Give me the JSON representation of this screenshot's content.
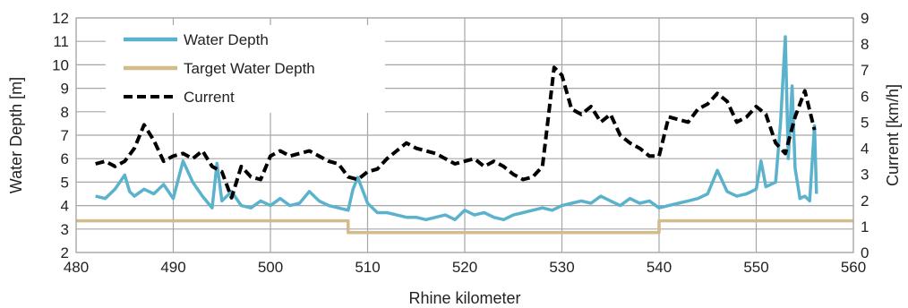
{
  "chart_data": {
    "type": "line",
    "xlabel": "Rhine kilometer",
    "ylabel": "Water Depth [m]",
    "y2label": "Current [km/h]",
    "xlim": [
      480,
      560
    ],
    "x_ticks": [
      480,
      490,
      500,
      510,
      520,
      530,
      540,
      550,
      560
    ],
    "ylim": [
      2,
      12
    ],
    "y_ticks": [
      2,
      3,
      4,
      5,
      6,
      7,
      8,
      9,
      10,
      11,
      12
    ],
    "y2lim": [
      0,
      9
    ],
    "y2_ticks": [
      0,
      1,
      2,
      3,
      4,
      5,
      6,
      7,
      8,
      9
    ],
    "grid": true,
    "legend_position": "top-left",
    "series": [
      {
        "name": "Water Depth",
        "axis": "left",
        "color": "#5ab2cc",
        "style": "solid",
        "x": [
          482,
          483,
          484,
          485,
          485.5,
          486,
          487,
          488,
          489,
          490,
          491,
          492,
          493,
          494,
          494.5,
          495,
          496,
          497,
          498,
          499,
          500,
          501,
          502,
          503,
          504,
          505,
          506,
          507,
          508,
          508.5,
          509,
          510,
          511,
          512,
          513,
          514,
          515,
          516,
          517,
          518,
          519,
          520,
          521,
          522,
          523,
          524,
          525,
          526,
          527,
          528,
          529,
          530,
          531,
          532,
          533,
          534,
          535,
          536,
          537,
          538,
          539,
          540,
          541,
          542,
          543,
          544,
          545,
          546,
          547,
          548,
          549,
          550,
          550.5,
          551,
          552,
          552.5,
          553,
          553.3,
          553.7,
          554,
          554.5,
          555,
          555.5,
          556,
          556.2
        ],
        "y": [
          4.4,
          4.3,
          4.7,
          5.3,
          4.6,
          4.4,
          4.7,
          4.5,
          4.9,
          4.3,
          5.9,
          5.0,
          4.4,
          3.9,
          5.8,
          4.2,
          4.6,
          4.0,
          3.9,
          4.2,
          4.0,
          4.3,
          4.0,
          4.1,
          4.6,
          4.2,
          4.0,
          3.9,
          3.8,
          4.7,
          5.2,
          4.1,
          3.7,
          3.7,
          3.6,
          3.5,
          3.5,
          3.4,
          3.5,
          3.6,
          3.4,
          3.8,
          3.6,
          3.7,
          3.5,
          3.4,
          3.6,
          3.7,
          3.8,
          3.9,
          3.8,
          4.0,
          4.1,
          4.2,
          4.1,
          4.4,
          4.2,
          4.0,
          4.3,
          4.1,
          4.2,
          3.9,
          4.0,
          4.1,
          4.2,
          4.3,
          4.5,
          5.5,
          4.6,
          4.4,
          4.5,
          4.7,
          5.9,
          4.8,
          5.0,
          7.5,
          11.2,
          6.0,
          9.1,
          5.6,
          4.3,
          4.4,
          4.2,
          7.4,
          4.5
        ]
      },
      {
        "name": "Target Water Depth",
        "axis": "left",
        "color": "#d3bc8c",
        "style": "solid",
        "x": [
          480,
          508,
          508,
          540,
          540,
          560
        ],
        "y": [
          3.35,
          3.35,
          2.85,
          2.85,
          3.35,
          3.35
        ]
      },
      {
        "name": "Current",
        "axis": "right",
        "color": "#000000",
        "style": "dashed",
        "x": [
          482,
          483,
          484,
          485,
          486,
          487,
          488,
          489,
          490,
          491,
          492,
          493,
          494,
          495,
          496,
          497,
          498,
          499,
          500,
          501,
          502,
          503,
          504,
          505,
          506,
          507,
          508,
          509,
          510,
          511,
          512,
          513,
          514,
          515,
          516,
          517,
          518,
          519,
          520,
          521,
          522,
          523,
          524,
          525,
          526,
          527,
          528,
          528.7,
          529.2,
          530,
          531,
          532,
          533,
          534,
          535,
          536,
          537,
          538,
          539,
          540,
          541,
          542,
          543,
          544,
          545,
          546,
          547,
          548,
          549,
          550,
          551,
          552,
          553,
          554,
          555,
          556
        ],
        "y": [
          3.4,
          3.5,
          3.3,
          3.5,
          4.0,
          4.9,
          4.3,
          3.5,
          3.7,
          3.8,
          3.6,
          3.9,
          3.3,
          3.1,
          2.1,
          3.3,
          2.9,
          2.8,
          3.7,
          3.9,
          3.7,
          3.8,
          3.9,
          3.7,
          3.5,
          3.4,
          2.9,
          2.8,
          3.1,
          3.2,
          3.6,
          3.9,
          4.2,
          4.0,
          3.9,
          3.8,
          3.6,
          3.4,
          3.5,
          3.6,
          3.3,
          3.5,
          3.3,
          3.0,
          2.8,
          2.9,
          3.3,
          5.5,
          7.1,
          6.8,
          5.5,
          5.3,
          5.6,
          5.0,
          5.3,
          4.5,
          4.2,
          4.0,
          3.7,
          3.7,
          5.2,
          5.1,
          5.0,
          5.5,
          5.7,
          6.1,
          5.8,
          5.0,
          5.2,
          5.6,
          5.3,
          4.2,
          3.8,
          5.2,
          6.2,
          4.7
        ]
      }
    ]
  }
}
